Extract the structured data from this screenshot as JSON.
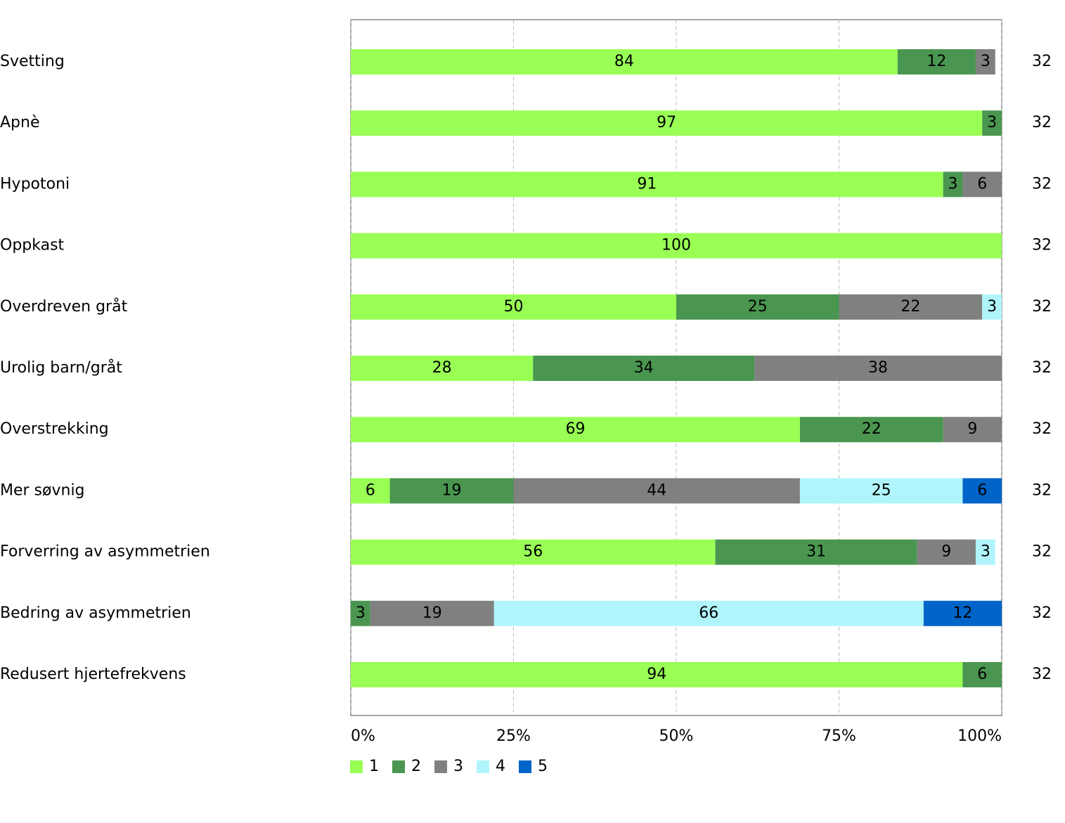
{
  "chart_data": {
    "type": "stacked-bar-horizontal",
    "categories": [
      "Svetting",
      "Apnè",
      "Hypotoni",
      "Oppkast",
      "Overdreven gråt",
      "Urolig barn/gråt",
      "Overstrekking",
      "Mer søvnig",
      "Forverring av asymmetrien",
      "Bedring av asymmetrien",
      "Redusert hjertefrekvens"
    ],
    "series": [
      {
        "name": "1",
        "color": "#99ff55",
        "values": [
          84,
          97,
          91,
          100,
          50,
          28,
          69,
          6,
          56,
          null,
          94
        ]
      },
      {
        "name": "2",
        "color": "#4a9650",
        "values": [
          12,
          3,
          3,
          null,
          25,
          34,
          22,
          19,
          31,
          3,
          6
        ]
      },
      {
        "name": "3",
        "color": "#808080",
        "values": [
          3,
          null,
          6,
          null,
          22,
          38,
          9,
          44,
          9,
          19,
          null
        ]
      },
      {
        "name": "4",
        "color": "#b0f5fb",
        "values": [
          null,
          null,
          null,
          null,
          3,
          null,
          null,
          25,
          3,
          66,
          null
        ]
      },
      {
        "name": "5",
        "color": "#0064c8",
        "values": [
          null,
          null,
          null,
          null,
          null,
          null,
          null,
          6,
          null,
          12,
          null
        ]
      }
    ],
    "n": [
      32,
      32,
      32,
      32,
      32,
      32,
      32,
      32,
      32,
      32,
      32
    ],
    "xlim": [
      0,
      100
    ],
    "xticks": [
      {
        "value": 0,
        "label": "0%"
      },
      {
        "value": 25,
        "label": "25%"
      },
      {
        "value": 50,
        "label": "50%"
      },
      {
        "value": 75,
        "label": "75%"
      },
      {
        "value": 100,
        "label": "100%"
      }
    ],
    "grid": true
  }
}
